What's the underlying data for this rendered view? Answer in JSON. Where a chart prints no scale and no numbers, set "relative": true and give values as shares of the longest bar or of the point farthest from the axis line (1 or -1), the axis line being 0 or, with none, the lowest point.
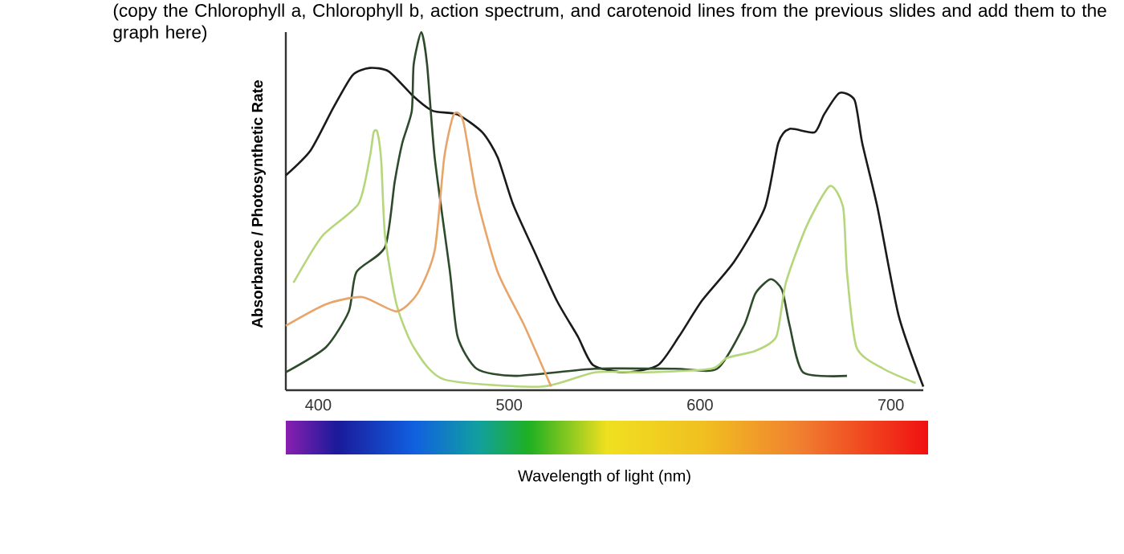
{
  "chart_data": {
    "type": "line",
    "title": "(copy the Chlorophyll a, Chlorophyll b, action spectrum, and carotenoid lines from the previous slides and add them to the graph here)",
    "xlabel": "Wavelength of light (nm)",
    "ylabel": "Absorbance / Photosynthetic Rate",
    "relative": true,
    "xlim": [
      383,
      717
    ],
    "xticks": [
      400,
      500,
      600,
      700
    ],
    "series": [
      {
        "color": "#1a1a1a",
        "x": [
          383,
          396,
          408,
          418,
          427,
          437,
          450,
          460,
          473,
          486,
          494,
          502,
          513,
          525,
          536,
          544,
          561,
          578,
          589,
          601,
          618,
          634,
          641,
          647,
          660,
          665,
          673,
          681,
          685,
          693,
          704,
          717
        ],
        "values": [
          0.6,
          0.67,
          0.79,
          0.88,
          0.9,
          0.89,
          0.82,
          0.78,
          0.77,
          0.72,
          0.65,
          0.52,
          0.39,
          0.25,
          0.15,
          0.07,
          0.05,
          0.07,
          0.15,
          0.25,
          0.36,
          0.51,
          0.69,
          0.73,
          0.72,
          0.77,
          0.83,
          0.81,
          0.69,
          0.51,
          0.21,
          0.01
        ]
      },
      {
        "color": "#2d4a2b",
        "x": [
          383,
          404,
          416,
          420,
          435,
          440,
          444,
          449,
          450,
          454,
          457,
          461,
          469,
          473,
          483,
          503,
          545,
          587,
          609,
          623,
          629,
          637,
          643,
          647,
          654,
          677
        ],
        "values": [
          0.05,
          0.12,
          0.22,
          0.33,
          0.4,
          0.58,
          0.69,
          0.78,
          0.91,
          1.0,
          0.91,
          0.65,
          0.33,
          0.15,
          0.06,
          0.04,
          0.06,
          0.06,
          0.06,
          0.18,
          0.27,
          0.31,
          0.28,
          0.18,
          0.05,
          0.04
        ]
      },
      {
        "color": "#b5d67a",
        "x": [
          387,
          402,
          421,
          427,
          429,
          431,
          433,
          435,
          441,
          450,
          466,
          517,
          545,
          572,
          606,
          614,
          629,
          640,
          645,
          656,
          668,
          675,
          677,
          682,
          696,
          713
        ],
        "values": [
          0.3,
          0.43,
          0.52,
          0.65,
          0.72,
          0.72,
          0.64,
          0.43,
          0.24,
          0.12,
          0.03,
          0.01,
          0.05,
          0.05,
          0.06,
          0.09,
          0.11,
          0.15,
          0.3,
          0.46,
          0.57,
          0.51,
          0.33,
          0.12,
          0.06,
          0.02
        ]
      },
      {
        "color": "#e8a56a",
        "x": [
          383,
          404,
          423,
          441,
          452,
          461,
          466,
          471,
          476,
          483,
          494,
          508,
          522
        ],
        "values": [
          0.18,
          0.24,
          0.26,
          0.22,
          0.27,
          0.39,
          0.65,
          0.77,
          0.75,
          0.54,
          0.33,
          0.18,
          0.01
        ]
      }
    ]
  }
}
